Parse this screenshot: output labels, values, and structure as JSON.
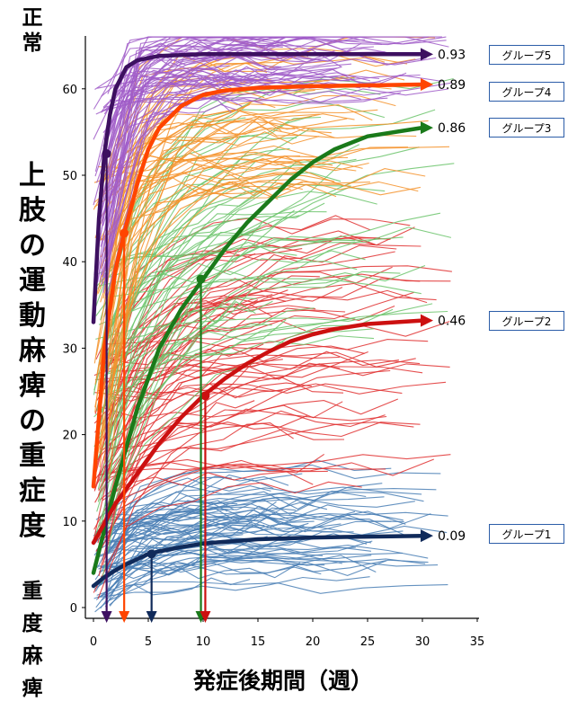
{
  "labels": {
    "y_top": "正常",
    "y_main": "上肢の運動麻痺の重症度",
    "y_bottom": "重度麻痺",
    "x_label": "発症後期間（週）"
  },
  "group_boxes": [
    "グループ5",
    "グループ4",
    "グループ3",
    "グループ2",
    "グループ1"
  ],
  "chart_data": {
    "type": "line",
    "title": "",
    "xlabel": "発症後期間（週）",
    "ylabel": "上肢の運動麻痺の重症度",
    "xlim": [
      0,
      35
    ],
    "ylim": [
      0,
      66
    ],
    "xticks": [
      0,
      5,
      10,
      15,
      20,
      25,
      30,
      35
    ],
    "yticks": [
      0,
      10,
      20,
      30,
      40,
      50,
      60
    ],
    "grid": false,
    "series": [
      {
        "name": "グループ5",
        "color": "#3d1060",
        "ratio_label": "0.93",
        "x": [
          0,
          0.5,
          1,
          1.5,
          2,
          3,
          4,
          6,
          8,
          10,
          15,
          20,
          25,
          30
        ],
        "y": [
          33,
          45,
          52.5,
          57,
          60,
          62.5,
          63.3,
          63.8,
          63.9,
          64,
          64,
          64,
          64,
          64
        ],
        "marker": {
          "x": 1.2,
          "y": 52.5
        }
      },
      {
        "name": "グループ4",
        "color": "#ff4500",
        "ratio_label": "0.89",
        "x": [
          0,
          1,
          2,
          2.8,
          4,
          5,
          6,
          8,
          10,
          12,
          15,
          20,
          25,
          30
        ],
        "y": [
          14,
          30,
          39,
          43.3,
          49,
          53,
          55.5,
          58,
          59.3,
          59.8,
          60.1,
          60.3,
          60.4,
          60.5
        ],
        "marker": {
          "x": 2.8,
          "y": 43.3
        }
      },
      {
        "name": "グループ3",
        "color": "#1a7a1a",
        "ratio_label": "0.86",
        "x": [
          0,
          2,
          4,
          6,
          8,
          10,
          12,
          14,
          16,
          18,
          20,
          22,
          25,
          30
        ],
        "y": [
          4,
          14,
          23,
          30,
          34.5,
          38,
          41.5,
          44.5,
          47,
          49.5,
          51.5,
          53,
          54.5,
          55.5
        ],
        "marker": {
          "x": 9.8,
          "y": 38
        }
      },
      {
        "name": "グループ2",
        "color": "#cc1010",
        "ratio_label": "0.46",
        "x": [
          0,
          2,
          4,
          6,
          8,
          10,
          12,
          14,
          16,
          18,
          20,
          22,
          25,
          30
        ],
        "y": [
          7.5,
          12,
          15.5,
          19,
          22,
          24.5,
          26.5,
          28.2,
          29.6,
          30.8,
          31.6,
          32.2,
          32.8,
          33.2
        ],
        "marker": {
          "x": 10.2,
          "y": 24.5
        }
      },
      {
        "name": "グループ1",
        "color": "#102a5a",
        "ratio_label": "0.09",
        "x": [
          0,
          1,
          2,
          3,
          4,
          5,
          6,
          8,
          10,
          12,
          15,
          20,
          25,
          30
        ],
        "y": [
          2.5,
          3.5,
          4.3,
          5,
          5.6,
          6.2,
          6.5,
          7,
          7.4,
          7.6,
          7.9,
          8.1,
          8.2,
          8.3
        ],
        "marker": {
          "x": 5.3,
          "y": 6.2
        }
      }
    ],
    "arrows_down_at_x": [
      {
        "x": 1.2,
        "color": "#3d1060"
      },
      {
        "x": 2.8,
        "color": "#ff4500"
      },
      {
        "x": 5.3,
        "color": "#102a5a"
      },
      {
        "x": 9.8,
        "color": "#1a7a1a"
      },
      {
        "x": 10.2,
        "color": "#cc1010"
      }
    ],
    "background_individual_curves_colors": [
      "#a05cc8",
      "#f5922a",
      "#6cc46c",
      "#e03030",
      "#4a7fb5"
    ]
  }
}
